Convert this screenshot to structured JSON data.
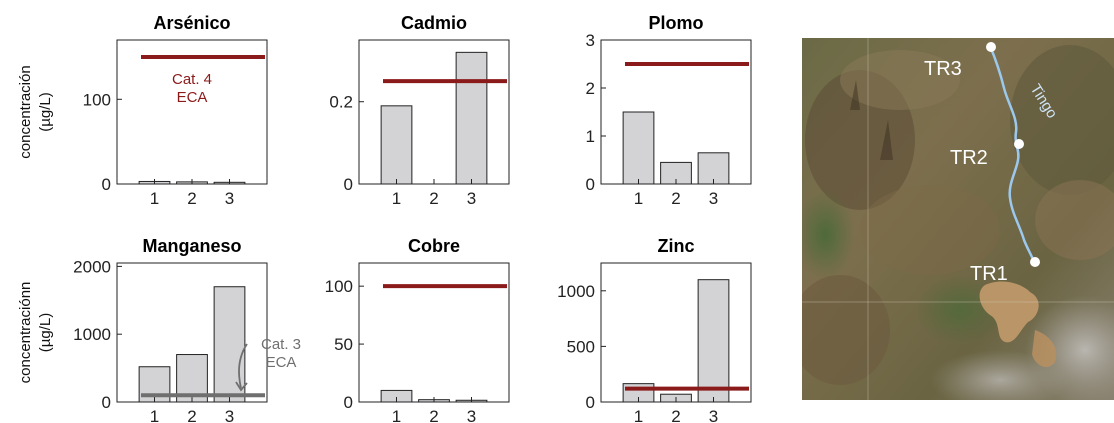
{
  "chart_data": [
    {
      "type": "bar",
      "title": "Arsénico",
      "ylabel": "concentración (µg/L)",
      "categories": [
        "1",
        "2",
        "3"
      ],
      "values": [
        3,
        2.5,
        2
      ],
      "ylim": [
        0,
        170
      ],
      "yticks": [
        "0",
        "100"
      ],
      "threshold": {
        "value": 150,
        "color": "#8b1a1a"
      },
      "annotation": {
        "lines": [
          "Cat. 4",
          "ECA"
        ],
        "color": "#8b1a1a"
      }
    },
    {
      "type": "bar",
      "title": "Cadmio",
      "categories": [
        "1",
        "2",
        "3"
      ],
      "values": [
        0.19,
        0,
        0.32
      ],
      "ylim": [
        0,
        0.35
      ],
      "yticks": [
        "0",
        "0.2"
      ],
      "threshold": {
        "value": 0.25,
        "color": "#8b1a1a"
      }
    },
    {
      "type": "bar",
      "title": "Plomo",
      "categories": [
        "1",
        "2",
        "3"
      ],
      "values": [
        1.5,
        0.45,
        0.65
      ],
      "ylim": [
        0,
        3
      ],
      "yticks": [
        "0",
        "1",
        "2",
        "3"
      ],
      "threshold": {
        "value": 2.5,
        "color": "#8b1a1a"
      }
    },
    {
      "type": "bar",
      "title": "Manganeso",
      "ylabel": "concentraciónn (µg/L)",
      "categories": [
        "1",
        "2",
        "3"
      ],
      "values": [
        520,
        700,
        1700
      ],
      "ylim": [
        0,
        2050
      ],
      "yticks": [
        "0",
        "1000",
        "2000"
      ],
      "threshold": {
        "value": 100,
        "color": "#6f6f6f"
      },
      "annotation": {
        "lines": [
          "Cat. 3",
          "ECA"
        ],
        "color": "#6f6f6f"
      }
    },
    {
      "type": "bar",
      "title": "Cobre",
      "categories": [
        "1",
        "2",
        "3"
      ],
      "values": [
        10,
        2,
        1.5
      ],
      "ylim": [
        0,
        120
      ],
      "yticks": [
        "0",
        "50",
        "100"
      ],
      "threshold": {
        "value": 100,
        "color": "#8b1a1a"
      }
    },
    {
      "type": "bar",
      "title": "Zinc",
      "categories": [
        "1",
        "2",
        "3"
      ],
      "values": [
        165,
        70,
        1100
      ],
      "ylim": [
        0,
        1250
      ],
      "yticks": [
        "0",
        "500",
        "1000"
      ],
      "threshold": {
        "value": 120,
        "color": "#8b1a1a"
      }
    }
  ],
  "map": {
    "points": [
      "TR3",
      "TR2",
      "TR1"
    ],
    "river": "Tingo",
    "river_color": "#9cc8ee",
    "point_color": "#ffffff"
  },
  "colors": {
    "bar_fill": "#d3d3d5",
    "bar_stroke": "#222222",
    "axis": "#222222"
  }
}
